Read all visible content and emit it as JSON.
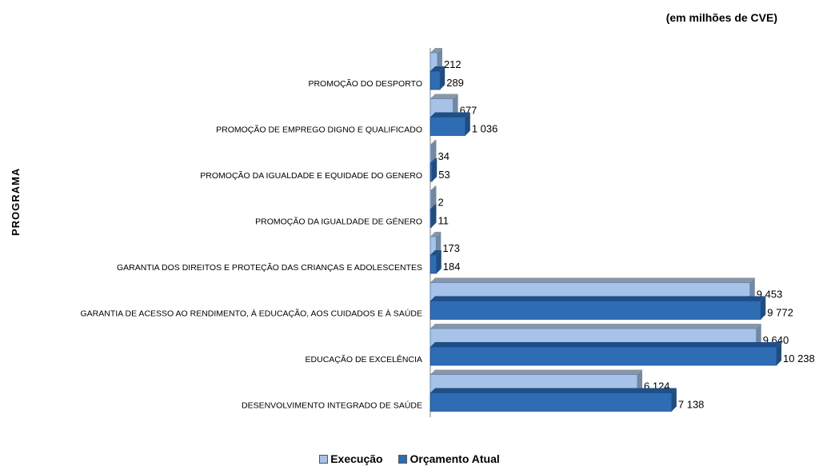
{
  "chart_data": {
    "type": "bar",
    "orientation": "horizontal",
    "unit_note": "(em milhões de CVE)",
    "ylabel": "PROGRAMA",
    "categories": [
      "PROMOÇÃO DO DESPORTO",
      "PROMOÇÃO DE EMPREGO DIGNO E QUALIFICADO",
      "PROMOÇÃO DA IGUALDADE E EQUIDADE DO GENERO",
      "PROMOÇÃO DA IGUALDADE DE GÉNERO",
      "GARANTIA DOS DIREITOS E PROTEÇÃO DAS CRIANÇAS E ADOLESCENTES",
      "GARANTIA DE ACESSO AO RENDIMENTO, À EDUCAÇÃO, AOS CUIDADOS E À SAÚDE",
      "EDUCAÇÃO DE EXCELÊNCIA",
      "DESENVOLVIMENTO INTEGRADO DE SAÚDE"
    ],
    "series": [
      {
        "name": "Execução",
        "color": "#a6c2e8",
        "values": [
          212,
          677,
          34,
          2,
          173,
          9453,
          9640,
          6124
        ],
        "labels": [
          "212",
          "677",
          "34",
          "2",
          "173",
          "9 453",
          "9 640",
          "6 124"
        ]
      },
      {
        "name": "Orçamento Atual",
        "color": "#2e6db4",
        "values": [
          289,
          1036,
          53,
          11,
          184,
          9772,
          10238,
          7138
        ],
        "labels": [
          "289",
          "1 036",
          "53",
          "11",
          "184",
          "9 772",
          "10 238",
          "7 138"
        ]
      }
    ],
    "legend_position": "bottom",
    "grid": false
  }
}
